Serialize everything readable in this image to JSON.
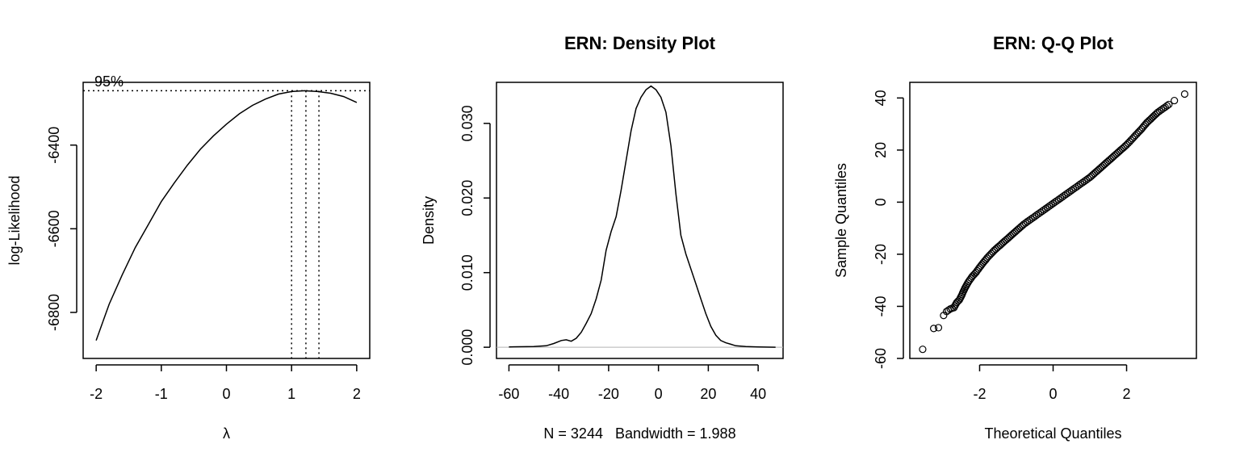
{
  "chart_data": [
    {
      "type": "line",
      "title": "",
      "xlabel": "λ",
      "ylabel": "log-Likelihood",
      "xlim": [
        -2.2,
        2.2
      ],
      "ylim": [
        -6910,
        -6250
      ],
      "xticks": [
        -2,
        -1,
        0,
        1,
        2
      ],
      "yticks": [
        -6800,
        -6600,
        -6400
      ],
      "annotation": "95%",
      "ci_level_y": -6270,
      "lambda_max": 1.22,
      "ci_lower": 1.0,
      "ci_upper": 1.42,
      "series": [
        {
          "x": [
            -2.0,
            -1.8,
            -1.6,
            -1.4,
            -1.2,
            -1.0,
            -0.8,
            -0.6,
            -0.4,
            -0.2,
            0.0,
            0.2,
            0.4,
            0.6,
            0.8,
            1.0,
            1.2,
            1.4,
            1.6,
            1.8,
            2.0
          ],
          "y": [
            -6867,
            -6780,
            -6710,
            -6645,
            -6590,
            -6535,
            -6490,
            -6448,
            -6410,
            -6378,
            -6350,
            -6325,
            -6305,
            -6290,
            -6278,
            -6272,
            -6270,
            -6272,
            -6276,
            -6284,
            -6298
          ]
        }
      ]
    },
    {
      "type": "line",
      "title": "ERN: Density  Plot",
      "xlabel": "N = 3244   Bandwidth = 1.988",
      "ylabel": "Density",
      "xlim": [
        -65,
        50
      ],
      "ylim": [
        -0.0015,
        0.0355
      ],
      "xticks": [
        -60,
        -40,
        -20,
        0,
        20,
        40
      ],
      "yticks": [
        0.0,
        0.01,
        0.02,
        0.03
      ],
      "ytick_labels": [
        "0.000",
        "0.010",
        "0.020",
        "0.030"
      ],
      "series": [
        {
          "x": [
            -60,
            -50,
            -45,
            -42,
            -39,
            -37,
            -35,
            -33,
            -31,
            -29,
            -27,
            -25,
            -23,
            -21,
            -19,
            -17,
            -15,
            -13,
            -11,
            -9,
            -7,
            -5,
            -3,
            -1,
            1,
            3,
            5,
            7,
            9,
            11,
            13,
            15,
            17,
            19,
            21,
            23,
            25,
            27,
            29,
            31,
            35,
            40,
            47
          ],
          "y": [
            5e-05,
            0.0001,
            0.0002,
            0.0005,
            0.0009,
            0.001,
            0.0008,
            0.0012,
            0.002,
            0.0032,
            0.0045,
            0.0065,
            0.009,
            0.013,
            0.0155,
            0.0175,
            0.021,
            0.025,
            0.029,
            0.032,
            0.0335,
            0.0345,
            0.035,
            0.0345,
            0.0335,
            0.0315,
            0.027,
            0.0205,
            0.015,
            0.0125,
            0.0105,
            0.0085,
            0.0065,
            0.0045,
            0.0028,
            0.0016,
            0.0009,
            0.0006,
            0.0004,
            0.0002,
            0.0001,
            5e-05,
            0.0
          ]
        }
      ]
    },
    {
      "type": "scatter",
      "title": "ERN: Q-Q Plot",
      "xlabel": "Theoretical Quantiles",
      "ylabel": "Sample Quantiles",
      "xlim": [
        -3.9,
        3.9
      ],
      "ylim": [
        -60,
        46
      ],
      "xticks": [
        -2,
        0,
        2
      ],
      "yticks": [
        -60,
        -40,
        -20,
        0,
        20,
        40
      ],
      "series": [
        {
          "x": [
            -3.55,
            -3.25,
            -3.12,
            -2.98,
            -2.9,
            -2.8,
            -2.7,
            -2.62,
            -2.55,
            -2.48,
            -2.4,
            -2.3,
            -2.2,
            -2.1,
            -2.0,
            -1.8,
            -1.6,
            -1.4,
            -1.2,
            -1.0,
            -0.8,
            -0.6,
            -0.4,
            -0.2,
            0.0,
            0.2,
            0.4,
            0.6,
            0.8,
            1.0,
            1.2,
            1.4,
            1.6,
            1.8,
            2.0,
            2.2,
            2.4,
            2.55,
            2.7,
            2.85,
            3.0,
            3.15,
            3.3,
            3.58
          ],
          "y": [
            -56.5,
            -48.5,
            -48.2,
            -43.5,
            -42.0,
            -41.0,
            -40.5,
            -38.5,
            -37.5,
            -35.5,
            -33.0,
            -30.5,
            -28.5,
            -27.0,
            -25.0,
            -21.5,
            -18.5,
            -16.0,
            -13.5,
            -11.0,
            -8.5,
            -6.5,
            -4.5,
            -2.5,
            -0.5,
            1.5,
            3.5,
            5.5,
            7.5,
            9.5,
            12.0,
            14.5,
            17.0,
            19.5,
            22.0,
            25.0,
            28.0,
            30.5,
            32.5,
            34.5,
            36.0,
            37.5,
            39.0,
            41.5
          ]
        }
      ]
    }
  ]
}
